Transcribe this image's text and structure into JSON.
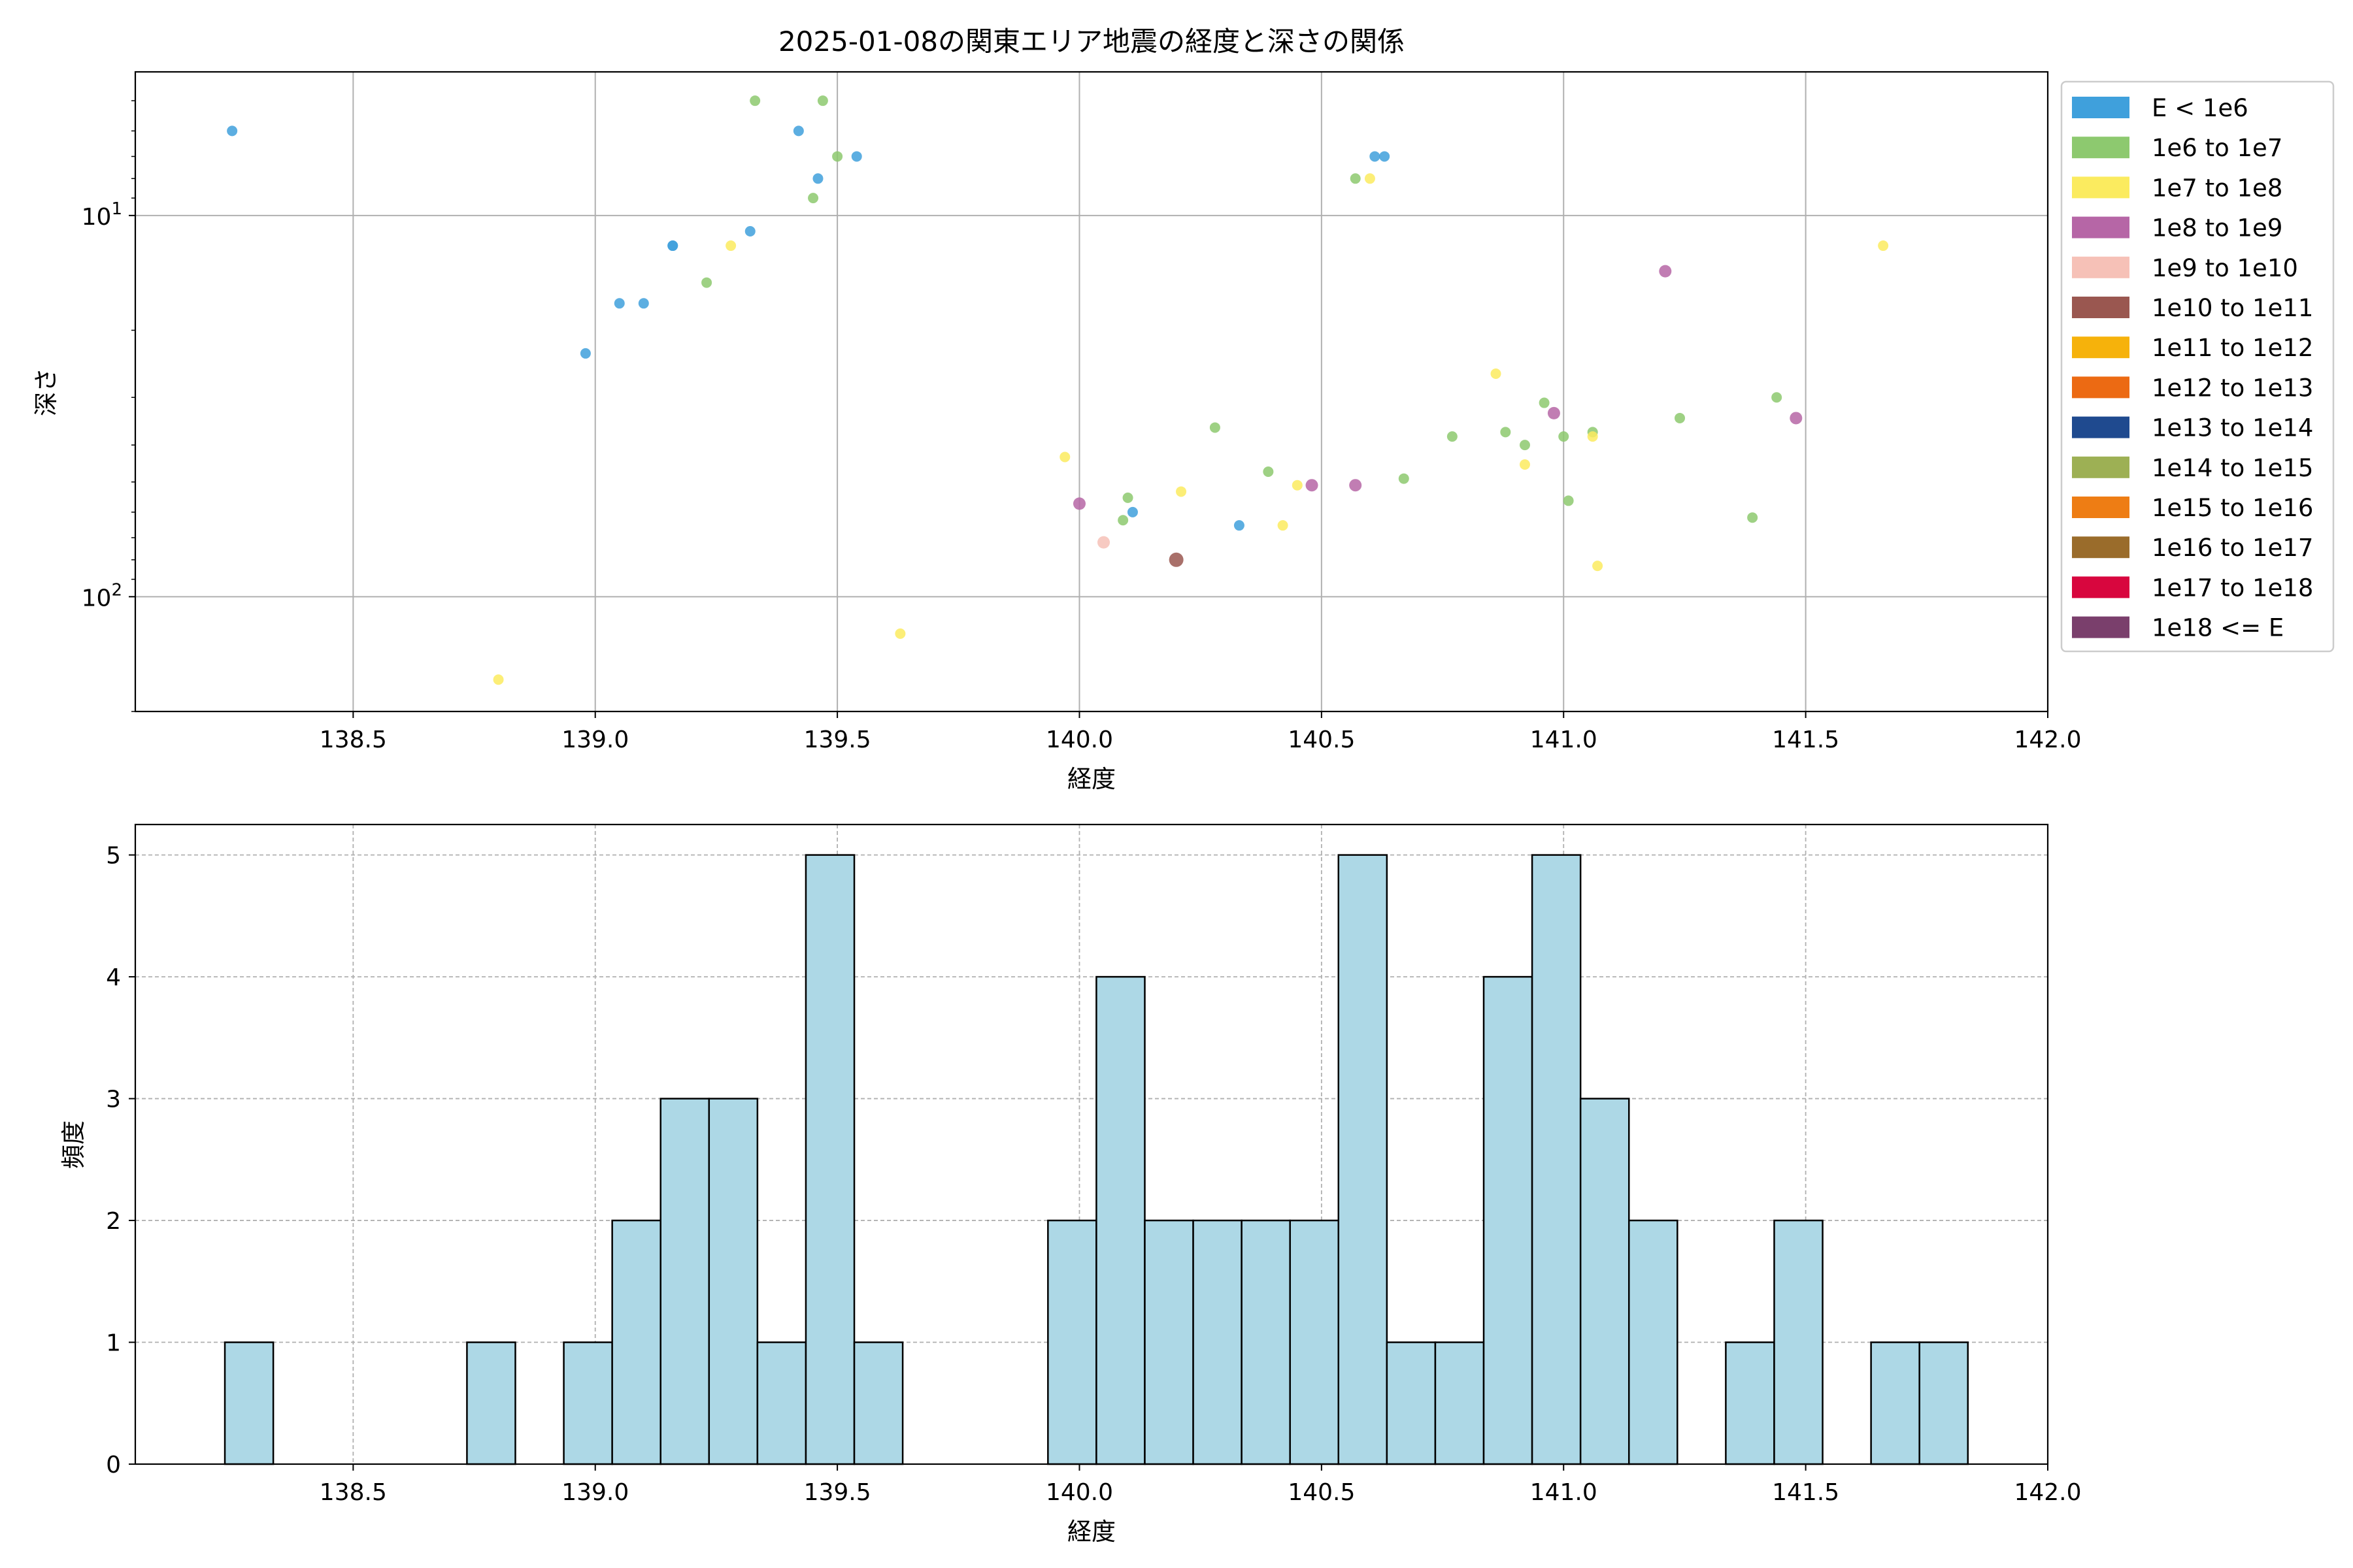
{
  "chart_data": [
    {
      "type": "scatter",
      "title": "2025-01-08の関東エリア地震の経度と深さの関係",
      "xlabel": "経度",
      "ylabel": "深さ",
      "xlim": [
        138.05,
        142.0
      ],
      "ylim": [
        200,
        4.2
      ],
      "yscale": "log",
      "yaxis_inverted": true,
      "grid": true,
      "x_ticks": [
        138.5,
        139.0,
        139.5,
        140.0,
        140.5,
        141.0,
        141.5,
        142.0
      ],
      "x_tick_labels": [
        "138.5",
        "139.0",
        "139.5",
        "140.0",
        "140.5",
        "141.0",
        "141.5",
        "142.0"
      ],
      "y_tick_labels": [
        {
          "value": 10,
          "base": "10",
          "exp": "1"
        },
        {
          "value": 100,
          "base": "10",
          "exp": "2"
        }
      ],
      "legend_position": "outside-right",
      "legend": [
        {
          "label": "E < 1e6",
          "color": "#3fa0dc"
        },
        {
          "label": "1e6 to 1e7",
          "color": "#8dc96f"
        },
        {
          "label": "1e7 to 1e8",
          "color": "#fbeb5f"
        },
        {
          "label": "1e8 to 1e9",
          "color": "#b666a6"
        },
        {
          "label": "1e9 to 1e10",
          "color": "#f6c1b7"
        },
        {
          "label": "1e10 to 1e11",
          "color": "#9a5750"
        },
        {
          "label": "1e11 to 1e12",
          "color": "#f6b20b"
        },
        {
          "label": "1e12 to 1e13",
          "color": "#ec6a13"
        },
        {
          "label": "1e13 to 1e14",
          "color": "#1f4a8f"
        },
        {
          "label": "1e14 to 1e15",
          "color": "#9db054"
        },
        {
          "label": "1e15 to 1e16",
          "color": "#ee7d14"
        },
        {
          "label": "1e16 to 1e17",
          "color": "#9a6c2b"
        },
        {
          "label": "1e17 to 1e18",
          "color": "#d8063e"
        },
        {
          "label": "1e18 <= E",
          "color": "#7a3f6c"
        }
      ],
      "points": [
        {
          "x": 138.25,
          "y": 6,
          "c": 0
        },
        {
          "x": 138.98,
          "y": 23,
          "c": 0
        },
        {
          "x": 139.05,
          "y": 17,
          "c": 0
        },
        {
          "x": 139.1,
          "y": 17,
          "c": 0
        },
        {
          "x": 139.16,
          "y": 12,
          "c": 0
        },
        {
          "x": 139.16,
          "y": 12,
          "c": 0
        },
        {
          "x": 139.32,
          "y": 11,
          "c": 0
        },
        {
          "x": 139.42,
          "y": 6,
          "c": 0
        },
        {
          "x": 139.46,
          "y": 8,
          "c": 0
        },
        {
          "x": 139.54,
          "y": 7,
          "c": 0
        },
        {
          "x": 140.11,
          "y": 60,
          "c": 0
        },
        {
          "x": 140.33,
          "y": 65,
          "c": 0
        },
        {
          "x": 140.61,
          "y": 7,
          "c": 0
        },
        {
          "x": 140.63,
          "y": 7,
          "c": 0
        },
        {
          "x": 139.23,
          "y": 15,
          "c": 1
        },
        {
          "x": 139.33,
          "y": 5,
          "c": 1
        },
        {
          "x": 139.47,
          "y": 5,
          "c": 1
        },
        {
          "x": 139.5,
          "y": 7,
          "c": 1
        },
        {
          "x": 139.45,
          "y": 9,
          "c": 1
        },
        {
          "x": 140.09,
          "y": 63,
          "c": 1
        },
        {
          "x": 140.1,
          "y": 55,
          "c": 1
        },
        {
          "x": 140.28,
          "y": 36,
          "c": 1
        },
        {
          "x": 140.39,
          "y": 47,
          "c": 1
        },
        {
          "x": 140.57,
          "y": 8,
          "c": 1
        },
        {
          "x": 140.67,
          "y": 49,
          "c": 1
        },
        {
          "x": 140.77,
          "y": 38,
          "c": 1
        },
        {
          "x": 140.88,
          "y": 37,
          "c": 1
        },
        {
          "x": 140.92,
          "y": 40,
          "c": 1
        },
        {
          "x": 140.96,
          "y": 31,
          "c": 1
        },
        {
          "x": 141.0,
          "y": 38,
          "c": 1
        },
        {
          "x": 141.01,
          "y": 56,
          "c": 1
        },
        {
          "x": 141.06,
          "y": 37,
          "c": 1
        },
        {
          "x": 141.24,
          "y": 34,
          "c": 1
        },
        {
          "x": 141.39,
          "y": 62,
          "c": 1
        },
        {
          "x": 141.44,
          "y": 30,
          "c": 1
        },
        {
          "x": 138.8,
          "y": 165,
          "c": 2
        },
        {
          "x": 139.28,
          "y": 12,
          "c": 2
        },
        {
          "x": 139.63,
          "y": 125,
          "c": 2
        },
        {
          "x": 139.97,
          "y": 43,
          "c": 2
        },
        {
          "x": 140.21,
          "y": 53,
          "c": 2
        },
        {
          "x": 140.42,
          "y": 65,
          "c": 2
        },
        {
          "x": 140.45,
          "y": 51,
          "c": 2
        },
        {
          "x": 140.6,
          "y": 8,
          "c": 2
        },
        {
          "x": 140.86,
          "y": 26,
          "c": 2
        },
        {
          "x": 140.92,
          "y": 45,
          "c": 2
        },
        {
          "x": 141.06,
          "y": 38,
          "c": 2
        },
        {
          "x": 141.07,
          "y": 83,
          "c": 2
        },
        {
          "x": 141.66,
          "y": 12,
          "c": 2
        },
        {
          "x": 140.0,
          "y": 57,
          "c": 3
        },
        {
          "x": 140.48,
          "y": 51,
          "c": 3
        },
        {
          "x": 140.57,
          "y": 51,
          "c": 3
        },
        {
          "x": 140.98,
          "y": 33,
          "c": 3
        },
        {
          "x": 141.21,
          "y": 14,
          "c": 3
        },
        {
          "x": 141.48,
          "y": 34,
          "c": 3
        },
        {
          "x": 140.05,
          "y": 72,
          "c": 4
        },
        {
          "x": 140.2,
          "y": 80,
          "c": 5
        }
      ]
    },
    {
      "type": "bar",
      "subtype": "histogram",
      "xlabel": "経度",
      "ylabel": "頻度",
      "xlim": [
        138.05,
        142.0
      ],
      "ylim": [
        0,
        5.25
      ],
      "grid": true,
      "bar_color": "#add8e6",
      "edge_color": "#000000",
      "bin_width": 0.1,
      "x_ticks": [
        138.5,
        139.0,
        139.5,
        140.0,
        140.5,
        141.0,
        141.5,
        142.0
      ],
      "x_tick_labels": [
        "138.5",
        "139.0",
        "139.5",
        "140.0",
        "140.5",
        "141.0",
        "141.5",
        "142.0"
      ],
      "y_ticks": [
        0,
        1,
        2,
        3,
        4,
        5
      ],
      "y_tick_labels": [
        "0",
        "1",
        "2",
        "3",
        "4",
        "5"
      ],
      "bins": [
        {
          "start": 138.235,
          "count": 1
        },
        {
          "start": 138.735,
          "count": 1
        },
        {
          "start": 138.935,
          "count": 1
        },
        {
          "start": 139.035,
          "count": 2
        },
        {
          "start": 139.135,
          "count": 3
        },
        {
          "start": 139.235,
          "count": 3
        },
        {
          "start": 139.335,
          "count": 1
        },
        {
          "start": 139.435,
          "count": 5
        },
        {
          "start": 139.535,
          "count": 1
        },
        {
          "start": 139.935,
          "count": 2
        },
        {
          "start": 140.035,
          "count": 4
        },
        {
          "start": 140.135,
          "count": 2
        },
        {
          "start": 140.235,
          "count": 2
        },
        {
          "start": 140.335,
          "count": 2
        },
        {
          "start": 140.435,
          "count": 2
        },
        {
          "start": 140.535,
          "count": 5
        },
        {
          "start": 140.635,
          "count": 1
        },
        {
          "start": 140.735,
          "count": 1
        },
        {
          "start": 140.835,
          "count": 4
        },
        {
          "start": 140.935,
          "count": 5
        },
        {
          "start": 141.035,
          "count": 3
        },
        {
          "start": 141.135,
          "count": 2
        },
        {
          "start": 141.335,
          "count": 1
        },
        {
          "start": 141.435,
          "count": 2
        },
        {
          "start": 141.635,
          "count": 1
        },
        {
          "start": 141.735,
          "count": 1
        }
      ]
    }
  ]
}
